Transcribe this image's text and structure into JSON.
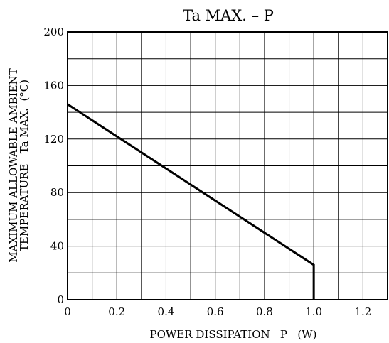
{
  "chart_data": {
    "type": "line",
    "title": "Ta MAX. – P",
    "xlabel": "POWER DISSIPATION   P   (W)",
    "ylabel_line1": "MAXIMUM ALLOWABLE AMBIENT",
    "ylabel_line2": "TEMPERATURE   Ta MAX.  (°C)",
    "xlim": [
      0,
      1.3
    ],
    "ylim": [
      0,
      200
    ],
    "x_ticks": [
      0,
      0.2,
      0.4,
      0.6,
      0.8,
      1.0,
      1.2
    ],
    "x_tick_labels": [
      "0",
      "0.2",
      "0.4",
      "0.6",
      "0.8",
      "1.0",
      "1.2"
    ],
    "y_ticks": [
      0,
      40,
      80,
      120,
      160,
      200
    ],
    "y_tick_labels": [
      "0",
      "40",
      "80",
      "120",
      "160",
      "200"
    ],
    "x_grid": [
      0,
      0.1,
      0.2,
      0.3,
      0.4,
      0.5,
      0.6,
      0.7,
      0.8,
      0.9,
      1.0,
      1.1,
      1.2,
      1.3
    ],
    "y_grid": [
      0,
      20,
      40,
      60,
      80,
      100,
      120,
      140,
      160,
      180,
      200
    ],
    "grid": true,
    "series": [
      {
        "x": [
          0,
          1.0,
          1.0
        ],
        "y": [
          146,
          26,
          0
        ]
      }
    ],
    "line_color": "#000000"
  }
}
